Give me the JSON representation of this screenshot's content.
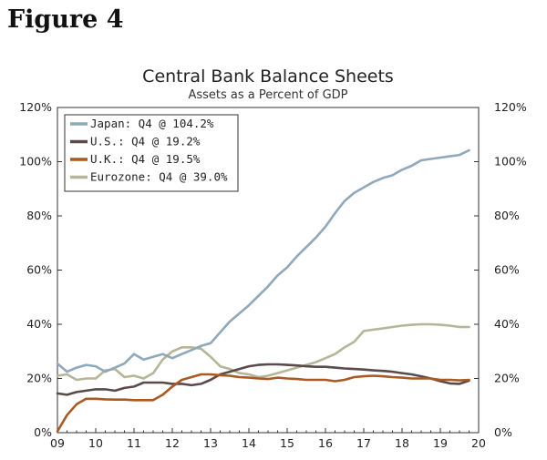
{
  "figure_label": "Figure 4",
  "chart_data": {
    "type": "line",
    "title": "Central Bank Balance Sheets",
    "subtitle": "Assets as a Percent of GDP",
    "xlabel": "",
    "ylabel": "",
    "x_ticks": [
      "09",
      "10",
      "11",
      "12",
      "13",
      "14",
      "15",
      "16",
      "17",
      "18",
      "19",
      "20"
    ],
    "xlim": [
      2009,
      2020
    ],
    "ylim": [
      0,
      120
    ],
    "y_ticks": [
      "0%",
      "20%",
      "40%",
      "60%",
      "80%",
      "100%",
      "120%"
    ],
    "y_tick_values": [
      0,
      20,
      40,
      60,
      80,
      100,
      120
    ],
    "secondary_axis": true,
    "grid": false,
    "legend_placement": "top-left",
    "x": [
      2009.0,
      2009.25,
      2009.5,
      2009.75,
      2010.0,
      2010.25,
      2010.5,
      2010.75,
      2011.0,
      2011.25,
      2011.5,
      2011.75,
      2012.0,
      2012.25,
      2012.5,
      2012.75,
      2013.0,
      2013.25,
      2013.5,
      2013.75,
      2014.0,
      2014.25,
      2014.5,
      2014.75,
      2015.0,
      2015.25,
      2015.5,
      2015.75,
      2016.0,
      2016.25,
      2016.5,
      2016.75,
      2017.0,
      2017.25,
      2017.5,
      2017.75,
      2018.0,
      2018.25,
      2018.5,
      2018.75,
      2019.0,
      2019.25,
      2019.5,
      2019.75
    ],
    "series": [
      {
        "name": "Japan: Q4 @ 104.2%",
        "color": "#8fa8bc",
        "values": [
          25.5,
          22.5,
          24.0,
          25.0,
          24.5,
          22.5,
          24.0,
          25.5,
          29.0,
          27.0,
          28.0,
          29.0,
          27.5,
          29.0,
          30.5,
          32.0,
          33.0,
          37.0,
          41.0,
          44.0,
          47.0,
          50.5,
          54.0,
          58.0,
          61.0,
          65.0,
          68.5,
          72.0,
          76.0,
          81.0,
          85.5,
          88.5,
          90.5,
          92.5,
          94.0,
          95.0,
          97.0,
          98.5,
          100.5,
          101.0,
          101.5,
          102.0,
          102.5,
          104.2
        ]
      },
      {
        "name": "U.S.: Q4 @ 19.2%",
        "color": "#5a4a4a",
        "values": [
          14.5,
          14.0,
          15.0,
          15.5,
          16.0,
          16.0,
          15.5,
          16.5,
          17.0,
          18.5,
          18.5,
          18.5,
          18.0,
          18.0,
          17.5,
          18.0,
          19.5,
          21.5,
          22.5,
          23.5,
          24.5,
          25.0,
          25.2,
          25.2,
          25.0,
          24.8,
          24.5,
          24.3,
          24.3,
          24.0,
          23.7,
          23.5,
          23.3,
          23.0,
          22.8,
          22.5,
          22.0,
          21.5,
          20.8,
          20.0,
          19.0,
          18.2,
          18.0,
          19.2
        ]
      },
      {
        "name": "U.K.: Q4 @ 19.5%",
        "color": "#a95a22",
        "values": [
          0.5,
          6.5,
          10.5,
          12.5,
          12.5,
          12.3,
          12.2,
          12.2,
          12.0,
          12.0,
          12.0,
          14.0,
          17.0,
          19.5,
          20.5,
          21.5,
          21.5,
          21.2,
          21.0,
          20.5,
          20.3,
          20.0,
          19.8,
          20.3,
          20.0,
          19.8,
          19.5,
          19.5,
          19.5,
          19.0,
          19.5,
          20.5,
          20.8,
          21.0,
          20.8,
          20.5,
          20.3,
          20.0,
          20.0,
          20.0,
          19.5,
          19.5,
          19.3,
          19.5
        ]
      },
      {
        "name": "Eurozone: Q4 @ 39.0%",
        "color": "#b5b597",
        "values": [
          21.0,
          21.5,
          19.5,
          20.0,
          20.0,
          23.0,
          23.5,
          20.5,
          21.0,
          20.0,
          22.0,
          27.0,
          30.0,
          31.5,
          31.5,
          31.0,
          28.0,
          24.5,
          23.5,
          22.0,
          21.5,
          20.5,
          21.0,
          22.0,
          23.0,
          24.0,
          25.0,
          26.0,
          27.5,
          29.0,
          31.5,
          33.5,
          37.5,
          38.0,
          38.5,
          39.0,
          39.5,
          39.8,
          40.0,
          40.0,
          39.8,
          39.5,
          39.0,
          39.0
        ]
      }
    ]
  }
}
